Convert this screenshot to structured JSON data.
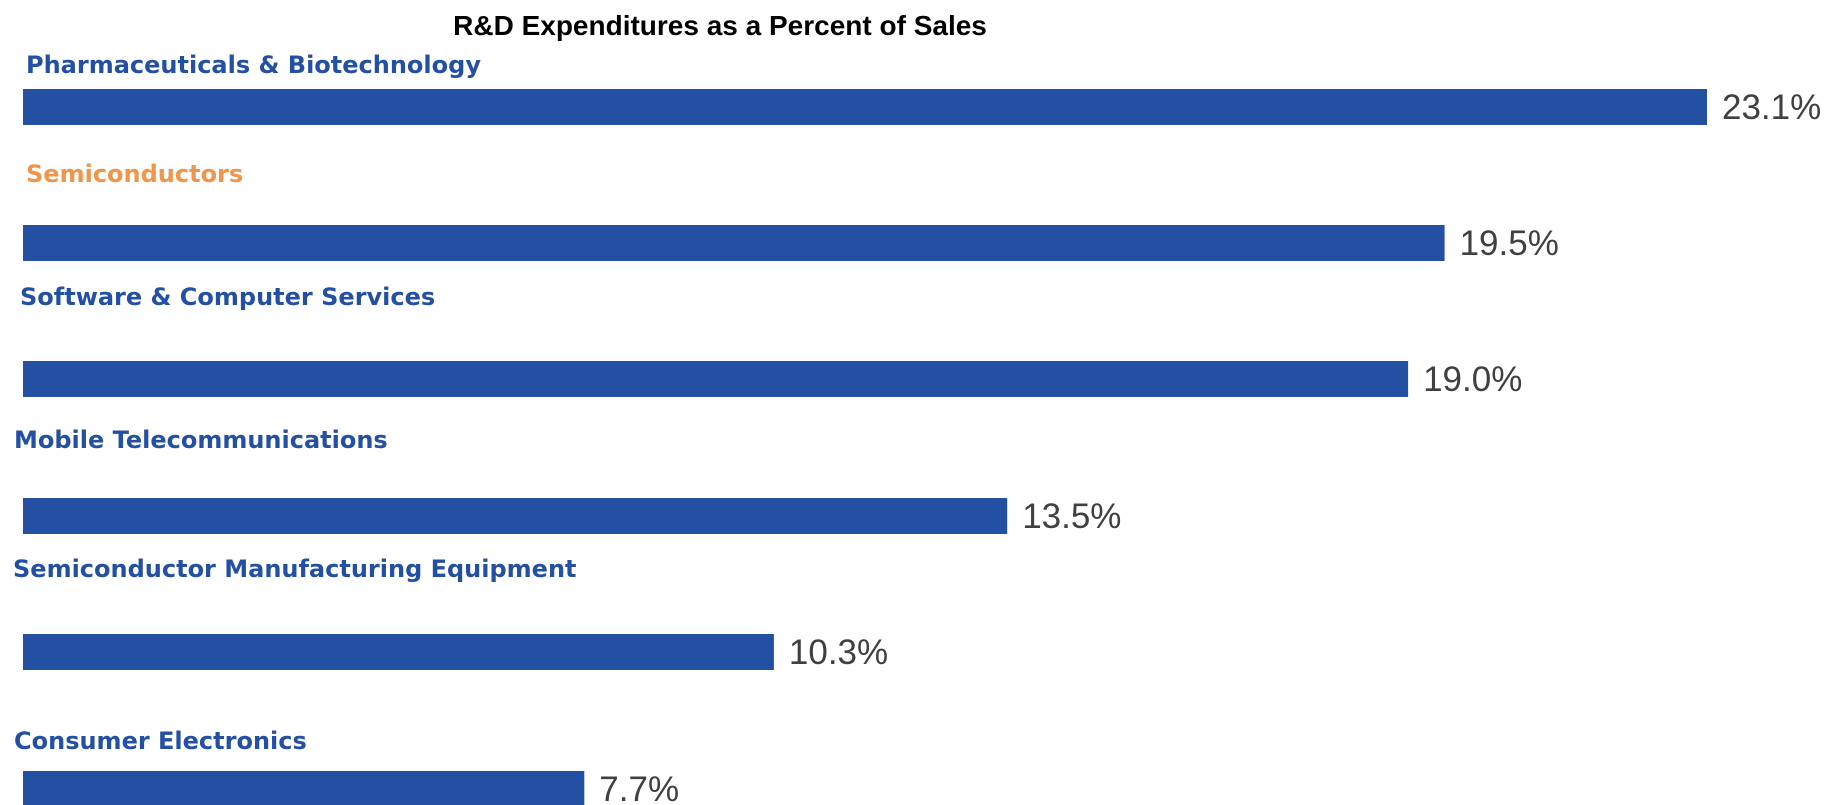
{
  "chart_data": {
    "type": "bar",
    "orientation": "horizontal",
    "title": "R&D Expenditures as a Percent of Sales",
    "xlabel": "",
    "ylabel": "",
    "xlim": [
      0,
      23.1
    ],
    "grid": false,
    "categories": [
      "Pharmaceuticals & Biotechnology",
      "Semiconductors",
      "Software & Computer Services",
      "Mobile Telecommunications",
      "Semiconductor Manufacturing Equipment",
      "Consumer Electronics"
    ],
    "values": [
      23.1,
      19.5,
      19.0,
      13.5,
      10.3,
      7.7
    ],
    "value_labels": [
      "23.1%",
      "19.5%",
      "19.0%",
      "13.5%",
      "10.3%",
      "7.7%"
    ],
    "category_label_colors": [
      "#2450A4",
      "#F0954A",
      "#2450A4",
      "#2450A4",
      "#2450A4",
      "#2450A4"
    ],
    "bar_color": "#2450A4",
    "value_label_color": "#404040"
  }
}
